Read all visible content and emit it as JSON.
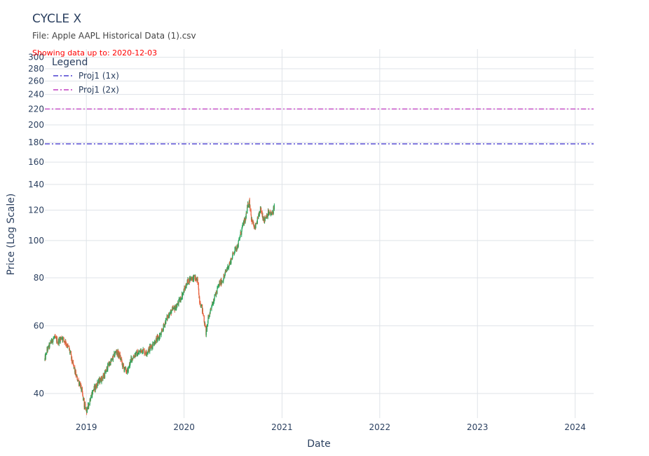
{
  "header": {
    "title": "CYCLE X",
    "subtitle": "File: Apple AAPL Historical Data (1).csv"
  },
  "chart_data": {
    "type": "candlestick",
    "annotation": "Showing data up to: 2020-12-03",
    "xlabel": "Date",
    "ylabel": "Price (Log Scale)",
    "y_scale": "log",
    "xlim": [
      "2018-07-30",
      "2024-03-10"
    ],
    "ylim": [
      34.5,
      315
    ],
    "x_tick_labels": [
      "2019",
      "2020",
      "2021",
      "2022",
      "2023",
      "2024"
    ],
    "y_tick_labels": [
      "40",
      "60",
      "80",
      "100",
      "120",
      "140",
      "160",
      "180",
      "200",
      "220",
      "240",
      "260",
      "280",
      "300"
    ],
    "grid": true,
    "legend_title": "Legend",
    "legend_position": "top-left",
    "up_color": "#26a65b",
    "down_color": "#e8603c",
    "projections": [
      {
        "name": "Proj1 (1x)",
        "value": 178.5,
        "color": "#4a3fd1"
      },
      {
        "name": "Proj1 (2x)",
        "value": 220.0,
        "color": "#c03cbf"
      }
    ],
    "series_anchors": [
      [
        "2018-07-30",
        49.0
      ],
      [
        "2018-08-06",
        51.5
      ],
      [
        "2018-08-20",
        54.0
      ],
      [
        "2018-09-03",
        56.0
      ],
      [
        "2018-09-17",
        54.5
      ],
      [
        "2018-10-01",
        56.0
      ],
      [
        "2018-10-15",
        54.5
      ],
      [
        "2018-10-29",
        52.0
      ],
      [
        "2018-11-12",
        47.5
      ],
      [
        "2018-11-26",
        44.0
      ],
      [
        "2018-12-10",
        42.0
      ],
      [
        "2018-12-24",
        37.5
      ],
      [
        "2019-01-03",
        36.0
      ],
      [
        "2019-01-14",
        38.5
      ],
      [
        "2019-01-28",
        41.0
      ],
      [
        "2019-02-11",
        42.5
      ],
      [
        "2019-02-25",
        43.5
      ],
      [
        "2019-03-11",
        45.0
      ],
      [
        "2019-03-25",
        47.5
      ],
      [
        "2019-04-08",
        49.0
      ],
      [
        "2019-04-22",
        51.5
      ],
      [
        "2019-05-06",
        50.0
      ],
      [
        "2019-05-20",
        46.5
      ],
      [
        "2019-06-03",
        45.5
      ],
      [
        "2019-06-17",
        49.0
      ],
      [
        "2019-07-01",
        50.5
      ],
      [
        "2019-07-15",
        51.0
      ],
      [
        "2019-07-29",
        52.0
      ],
      [
        "2019-08-12",
        51.0
      ],
      [
        "2019-08-26",
        52.5
      ],
      [
        "2019-09-09",
        54.0
      ],
      [
        "2019-09-23",
        55.5
      ],
      [
        "2019-10-07",
        57.0
      ],
      [
        "2019-10-21",
        61.0
      ],
      [
        "2019-11-04",
        64.0
      ],
      [
        "2019-11-18",
        66.0
      ],
      [
        "2019-12-02",
        67.0
      ],
      [
        "2019-12-16",
        70.0
      ],
      [
        "2019-12-30",
        73.5
      ],
      [
        "2020-01-13",
        78.0
      ],
      [
        "2020-01-27",
        80.0
      ],
      [
        "2020-02-10",
        80.0
      ],
      [
        "2020-02-20",
        78.5
      ],
      [
        "2020-02-28",
        70.0
      ],
      [
        "2020-03-09",
        66.0
      ],
      [
        "2020-03-16",
        62.0
      ],
      [
        "2020-03-23",
        57.5
      ],
      [
        "2020-03-30",
        62.0
      ],
      [
        "2020-04-13",
        68.0
      ],
      [
        "2020-04-27",
        72.0
      ],
      [
        "2020-05-11",
        77.0
      ],
      [
        "2020-05-25",
        79.0
      ],
      [
        "2020-06-08",
        84.0
      ],
      [
        "2020-06-22",
        88.0
      ],
      [
        "2020-07-06",
        94.0
      ],
      [
        "2020-07-20",
        97.0
      ],
      [
        "2020-08-03",
        107.0
      ],
      [
        "2020-08-17",
        114.0
      ],
      [
        "2020-08-31",
        128.0
      ],
      [
        "2020-09-08",
        115.0
      ],
      [
        "2020-09-21",
        107.0
      ],
      [
        "2020-10-05",
        115.0
      ],
      [
        "2020-10-12",
        121.0
      ],
      [
        "2020-10-26",
        113.0
      ],
      [
        "2020-11-09",
        118.0
      ],
      [
        "2020-11-23",
        117.0
      ],
      [
        "2020-12-03",
        123.0
      ]
    ]
  }
}
